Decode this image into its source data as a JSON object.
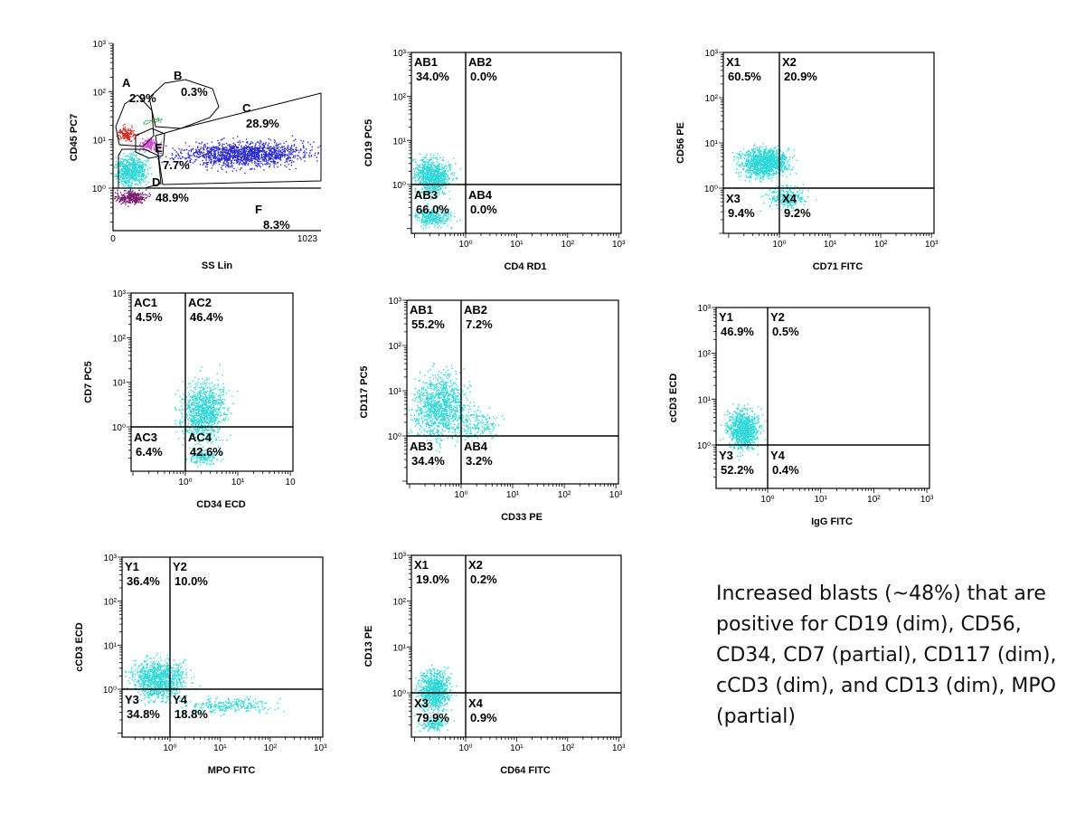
{
  "colors": {
    "blast": "#2fd8d8",
    "lymph": "#d42a2a",
    "green": "#3aa84a",
    "magenta": "#d64ad6",
    "gran": "#2a2ad0",
    "debris": "#7a1a6e"
  },
  "summary_text": "Increased blasts (~48%) that are positive for CD19 (dim), CD56, CD34, CD7 (partial), CD117 (dim), cCD3 (dim), and CD13 (dim), MPO (partial)",
  "chart_data": [
    {
      "type": "scatter",
      "id": "p1",
      "scale": "linear-log",
      "xlabel": "SS Lin",
      "ylabel": "CD45 PC7",
      "x_ticks": [
        "0",
        "1023"
      ],
      "y_ticks": [
        "10⁰",
        "10¹",
        "10²",
        "10³"
      ],
      "gates": [
        {
          "name": "A",
          "value": "2.9%"
        },
        {
          "name": "B",
          "value": "0.3%"
        },
        {
          "name": "C",
          "value": "28.9%"
        },
        {
          "name": "D",
          "value": "48.9%"
        },
        {
          "name": "E",
          "value": "7.7%"
        },
        {
          "name": "F",
          "value": "8.3%"
        }
      ]
    },
    {
      "type": "scatter",
      "id": "p2",
      "scale": "log-log",
      "xlabel": "CD4 RD1",
      "ylabel": "CD19 PC5",
      "x_ticks": [
        "10⁰",
        "10¹",
        "10²",
        "10³"
      ],
      "y_ticks": [
        "10⁰",
        "10¹",
        "10²",
        "10³"
      ],
      "quadrants": [
        {
          "name": "AB1",
          "value": "34.0%"
        },
        {
          "name": "AB2",
          "value": "0.0%"
        },
        {
          "name": "AB3",
          "value": "66.0%"
        },
        {
          "name": "AB4",
          "value": "0.0%"
        }
      ]
    },
    {
      "type": "scatter",
      "id": "p3",
      "scale": "log-log",
      "xlabel": "CD71 FITC",
      "ylabel": "CD56 PE",
      "x_ticks": [
        "10⁰",
        "10¹",
        "10²",
        "10³"
      ],
      "y_ticks": [
        "10⁰",
        "10¹",
        "10²",
        "10³"
      ],
      "quadrants": [
        {
          "name": "X1",
          "value": "60.5%"
        },
        {
          "name": "X2",
          "value": "20.9%"
        },
        {
          "name": "X3",
          "value": "9.4%"
        },
        {
          "name": "X4",
          "value": "9.2%"
        }
      ]
    },
    {
      "type": "scatter",
      "id": "p4",
      "scale": "log-log",
      "xlabel": "CD34 ECD",
      "ylabel": "CD7 PC5",
      "x_ticks": [
        "10⁰",
        "10¹",
        "10"
      ],
      "y_ticks": [
        "10⁰",
        "10¹",
        "10²",
        "10³"
      ],
      "quadrants": [
        {
          "name": "AC1",
          "value": "4.5%"
        },
        {
          "name": "AC2",
          "value": "46.4%"
        },
        {
          "name": "AC3",
          "value": "6.4%"
        },
        {
          "name": "AC4",
          "value": "42.6%"
        }
      ]
    },
    {
      "type": "scatter",
      "id": "p5",
      "scale": "log-log",
      "xlabel": "CD33 PE",
      "ylabel": "CD117 PC5",
      "x_ticks": [
        "10⁰",
        "10¹",
        "10²",
        "10³"
      ],
      "y_ticks": [
        "10⁰",
        "10¹",
        "10²",
        "10³"
      ],
      "quadrants": [
        {
          "name": "AB1",
          "value": "55.2%"
        },
        {
          "name": "AB2",
          "value": "7.2%"
        },
        {
          "name": "AB3",
          "value": "34.4%"
        },
        {
          "name": "AB4",
          "value": "3.2%"
        }
      ]
    },
    {
      "type": "scatter",
      "id": "p6",
      "scale": "log-log",
      "xlabel": "IgG FITC",
      "ylabel": "cCD3 ECD",
      "x_ticks": [
        "10⁰",
        "10¹",
        "10²",
        "10³"
      ],
      "y_ticks": [
        "10⁰",
        "10¹",
        "10²",
        "10³"
      ],
      "quadrants": [
        {
          "name": "Y1",
          "value": "46.9%"
        },
        {
          "name": "Y2",
          "value": "0.5%"
        },
        {
          "name": "Y3",
          "value": "52.2%"
        },
        {
          "name": "Y4",
          "value": "0.4%"
        }
      ]
    },
    {
      "type": "scatter",
      "id": "p7",
      "scale": "log-log",
      "xlabel": "MPO FITC",
      "ylabel": "cCD3 ECD",
      "x_ticks": [
        "10⁰",
        "10¹",
        "10²",
        "10³"
      ],
      "y_ticks": [
        "10⁰",
        "10¹",
        "10²",
        "10³"
      ],
      "quadrants": [
        {
          "name": "Y1",
          "value": "36.4%"
        },
        {
          "name": "Y2",
          "value": "10.0%"
        },
        {
          "name": "Y3",
          "value": "34.8%"
        },
        {
          "name": "Y4",
          "value": "18.8%"
        }
      ]
    },
    {
      "type": "scatter",
      "id": "p8",
      "scale": "log-log",
      "xlabel": "CD64 FITC",
      "ylabel": "CD13 PE",
      "x_ticks": [
        "10⁰",
        "10¹",
        "10²",
        "10³"
      ],
      "y_ticks": [
        "10⁰",
        "10¹",
        "10²",
        "10³"
      ],
      "quadrants": [
        {
          "name": "X1",
          "value": "19.0%"
        },
        {
          "name": "X2",
          "value": "0.2%"
        },
        {
          "name": "X3",
          "value": "79.9%"
        },
        {
          "name": "X4",
          "value": "0.9%"
        }
      ]
    }
  ]
}
